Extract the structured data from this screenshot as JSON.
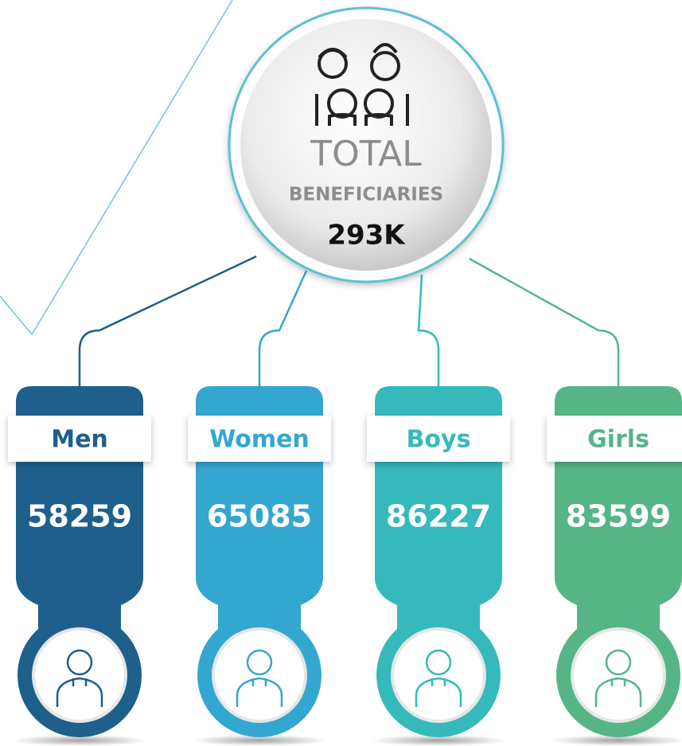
{
  "hub": {
    "title": "TOTAL",
    "subtitle": "BENEFICIARIES",
    "value": "293K"
  },
  "groups": [
    {
      "label": "Men",
      "value": "58259",
      "color": "#1e5f8c"
    },
    {
      "label": "Women",
      "value": "65085",
      "color": "#34a7d0"
    },
    {
      "label": "Boys",
      "value": "86227",
      "color": "#35b9bb"
    },
    {
      "label": "Girls",
      "value": "83599",
      "color": "#55b587"
    }
  ]
}
